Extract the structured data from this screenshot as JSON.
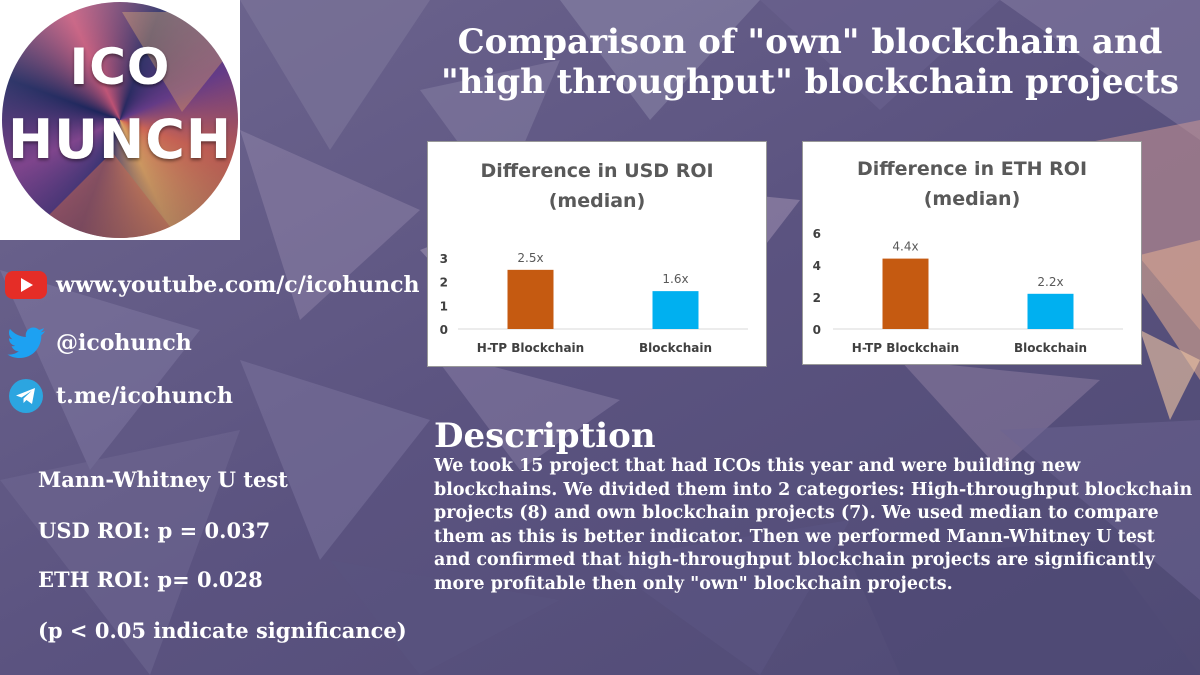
{
  "logo": {
    "line1": "ICO",
    "line2": "HUNCH"
  },
  "title": "Comparison of \"own\" blockchain and \"high throughput\" blockchain projects",
  "social": {
    "youtube": "www.youtube.com/c/icohunch",
    "twitter": "@icohunch",
    "telegram": "t.me/icohunch"
  },
  "stats": {
    "heading": "Mann-Whitney U test",
    "usd": "USD ROI: p = 0.037",
    "eth": "ETH ROI: p= 0.028",
    "note": "(p < 0.05 indicate significance)"
  },
  "description": {
    "heading": "Description",
    "body": "We took 15 project that had ICOs this year and were building new blockchains. We divided them into 2 categories: High-throughput blockchain projects (8) and own blockchain projects (7). We used median to compare them as this is better indicator. Then we performed Mann-Whitney U test and confirmed that high-throughput blockchain projects are significantly more profitable then only \"own\" blockchain projects."
  },
  "colors": {
    "bar_htp": "#c55a11",
    "bar_own": "#00b0f0",
    "youtube": "#e52d27",
    "twitter": "#1da1f2",
    "telegram": "#2ca5e0"
  },
  "icons": [
    "youtube-icon",
    "twitter-icon",
    "telegram-icon"
  ],
  "chart_data": [
    {
      "type": "bar",
      "title": "Difference in USD ROI (median)",
      "title_lines": [
        "Difference in USD ROI",
        "(median)"
      ],
      "categories": [
        "H-TP Blockchain",
        "Blockchain"
      ],
      "values": [
        2.5,
        1.6
      ],
      "data_labels": [
        "2.5x",
        "1.6x"
      ],
      "yticks": [
        0,
        1,
        2,
        3
      ],
      "ylim": [
        0,
        3
      ],
      "grid": false,
      "legend": false
    },
    {
      "type": "bar",
      "title": "Difference in ETH ROI (median)",
      "title_lines": [
        "Difference in ETH ROI",
        "(median)"
      ],
      "categories": [
        "H-TP Blockchain",
        "Blockchain"
      ],
      "values": [
        4.4,
        2.2
      ],
      "data_labels": [
        "4.4x",
        "2.2x"
      ],
      "yticks": [
        0,
        2,
        4,
        6
      ],
      "ylim": [
        0,
        6
      ],
      "grid": false,
      "legend": false
    }
  ]
}
